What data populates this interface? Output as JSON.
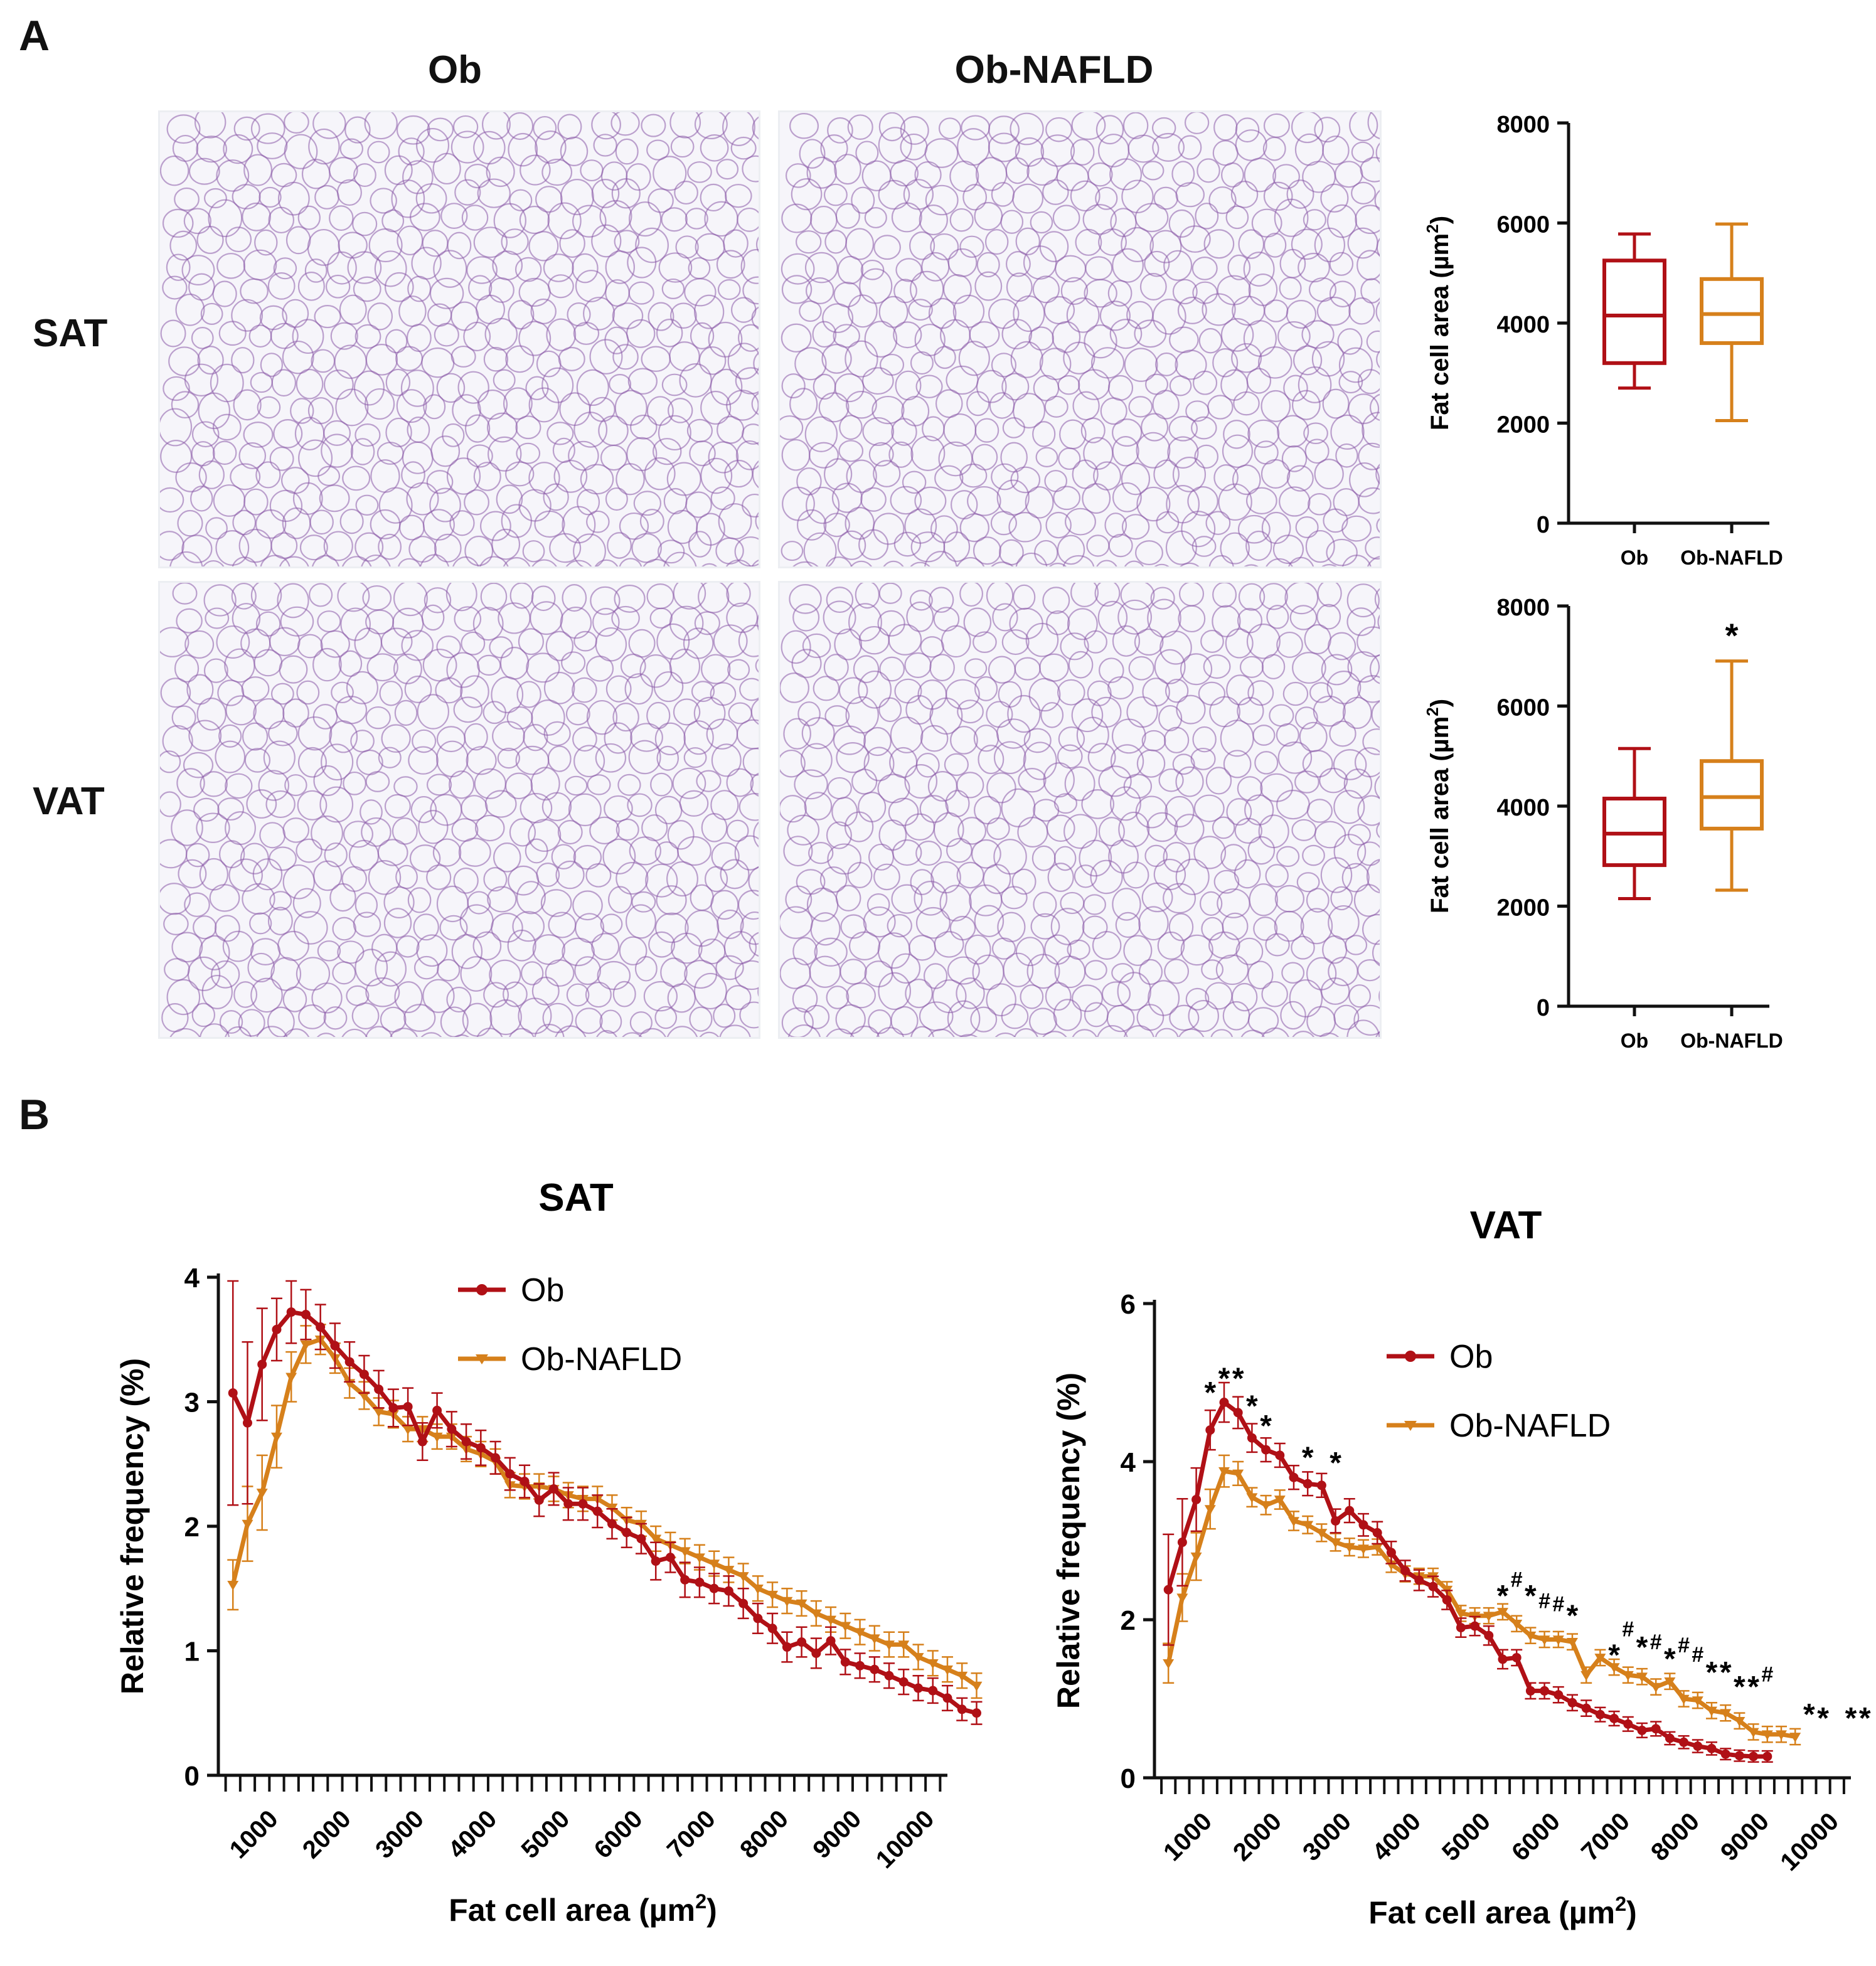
{
  "panel_a": {
    "letter": "A",
    "columns": [
      "Ob",
      "Ob-NAFLD"
    ],
    "rows": [
      "SAT",
      "VAT"
    ]
  },
  "panel_b": {
    "letter": "B"
  },
  "colors": {
    "ob": "#b01016",
    "ob_nafld": "#d6801b",
    "tissue_stain": "#8a5aa8"
  },
  "chart_data": [
    {
      "id": "sat_box",
      "type": "boxplot",
      "ylabel": "Fat cell area (µm²)",
      "ylabel_main": "Fat cell area (µm",
      "ylabel_sup": "2",
      "ylabel_tail": ")",
      "ylim": [
        0,
        8000
      ],
      "yticks": [
        0,
        2000,
        4000,
        6000,
        8000
      ],
      "categories": [
        "Ob",
        "Ob-NAFLD"
      ],
      "boxes": [
        {
          "name": "Ob",
          "min": 2700,
          "q1": 3200,
          "median": 4150,
          "q3": 5250,
          "max": 5780,
          "sig": ""
        },
        {
          "name": "Ob-NAFLD",
          "min": 2050,
          "q1": 3600,
          "median": 4180,
          "q3": 4880,
          "max": 5980,
          "sig": ""
        }
      ]
    },
    {
      "id": "vat_box",
      "type": "boxplot",
      "ylabel": "Fat cell area (µm²)",
      "ylabel_main": "Fat cell area (µm",
      "ylabel_sup": "2",
      "ylabel_tail": ")",
      "ylim": [
        0,
        8000
      ],
      "yticks": [
        0,
        2000,
        4000,
        6000,
        8000
      ],
      "categories": [
        "Ob",
        "Ob-NAFLD"
      ],
      "boxes": [
        {
          "name": "Ob",
          "min": 2150,
          "q1": 2820,
          "median": 3450,
          "q3": 4150,
          "max": 5150,
          "sig": ""
        },
        {
          "name": "Ob-NAFLD",
          "min": 2320,
          "q1": 3550,
          "median": 4180,
          "q3": 4900,
          "max": 6900,
          "sig": "*"
        }
      ]
    },
    {
      "id": "sat_line",
      "type": "line",
      "title": "SAT",
      "xlabel": "Fat cell area (µm²)",
      "xlabel_main": "Fat cell area (µm",
      "xlabel_sup": "2",
      "xlabel_tail": ")",
      "ylabel": "Relative frequency (%)",
      "xlim": [
        300,
        10300
      ],
      "ylim": [
        0,
        4
      ],
      "yticks": [
        0,
        1,
        2,
        3,
        4
      ],
      "xticks": [
        1000,
        2000,
        3000,
        4000,
        5000,
        6000,
        7000,
        8000,
        9000,
        10000
      ],
      "x_start": 500,
      "x_step": 200,
      "legend": {
        "position": "top-center",
        "entries": [
          "Ob",
          "Ob-NAFLD"
        ]
      },
      "series": [
        {
          "name": "Ob",
          "marker": "circle",
          "values": [
            3.07,
            2.83,
            3.3,
            3.58,
            3.72,
            3.7,
            3.6,
            3.45,
            3.32,
            3.22,
            3.1,
            2.95,
            2.96,
            2.68,
            2.93,
            2.78,
            2.68,
            2.63,
            2.55,
            2.42,
            2.36,
            2.21,
            2.3,
            2.18,
            2.18,
            2.12,
            2.02,
            1.95,
            1.9,
            1.72,
            1.75,
            1.57,
            1.55,
            1.5,
            1.48,
            1.38,
            1.26,
            1.18,
            1.03,
            1.07,
            0.98,
            1.08,
            0.91,
            0.88,
            0.85,
            0.8,
            0.75,
            0.7,
            0.68,
            0.62,
            0.53,
            0.5
          ],
          "errors": [
            0.9,
            0.65,
            0.45,
            0.25,
            0.25,
            0.2,
            0.18,
            0.18,
            0.16,
            0.15,
            0.15,
            0.15,
            0.15,
            0.15,
            0.14,
            0.14,
            0.14,
            0.14,
            0.13,
            0.13,
            0.13,
            0.13,
            0.13,
            0.13,
            0.13,
            0.13,
            0.12,
            0.12,
            0.12,
            0.15,
            0.12,
            0.14,
            0.12,
            0.12,
            0.12,
            0.12,
            0.12,
            0.12,
            0.12,
            0.12,
            0.12,
            0.11,
            0.1,
            0.1,
            0.1,
            0.1,
            0.1,
            0.1,
            0.1,
            0.1,
            0.09,
            0.09
          ]
        },
        {
          "name": "Ob-NAFLD",
          "marker": "triangle-down",
          "values": [
            1.53,
            2.02,
            2.27,
            2.72,
            3.2,
            3.46,
            3.5,
            3.35,
            3.15,
            3.05,
            2.92,
            2.9,
            2.78,
            2.78,
            2.72,
            2.72,
            2.62,
            2.58,
            2.52,
            2.33,
            2.32,
            2.32,
            2.3,
            2.25,
            2.22,
            2.22,
            2.15,
            2.05,
            2.02,
            1.9,
            1.85,
            1.8,
            1.75,
            1.7,
            1.65,
            1.6,
            1.5,
            1.45,
            1.4,
            1.38,
            1.3,
            1.25,
            1.2,
            1.15,
            1.1,
            1.05,
            1.05,
            0.95,
            0.9,
            0.85,
            0.8,
            0.72
          ],
          "errors": [
            0.2,
            0.3,
            0.3,
            0.25,
            0.2,
            0.15,
            0.12,
            0.12,
            0.12,
            0.11,
            0.11,
            0.11,
            0.1,
            0.1,
            0.1,
            0.1,
            0.1,
            0.1,
            0.1,
            0.1,
            0.1,
            0.1,
            0.1,
            0.1,
            0.1,
            0.1,
            0.1,
            0.1,
            0.1,
            0.1,
            0.1,
            0.1,
            0.1,
            0.1,
            0.1,
            0.1,
            0.1,
            0.1,
            0.1,
            0.1,
            0.1,
            0.1,
            0.1,
            0.1,
            0.1,
            0.1,
            0.1,
            0.1,
            0.1,
            0.1,
            0.1,
            0.1
          ]
        }
      ]
    },
    {
      "id": "vat_line",
      "type": "line",
      "title": "VAT",
      "xlabel": "Fat cell area (µm²)",
      "xlabel_main": "Fat cell area (µm",
      "xlabel_sup": "2",
      "xlabel_tail": ")",
      "ylabel": "Relative frequency (%)",
      "xlim": [
        300,
        10300
      ],
      "ylim": [
        0,
        6
      ],
      "yticks": [
        0,
        2,
        4,
        6
      ],
      "xticks": [
        1000,
        2000,
        3000,
        4000,
        5000,
        6000,
        7000,
        8000,
        9000,
        10000
      ],
      "x_start": 500,
      "x_step": 200,
      "legend": {
        "position": "top-right",
        "entries": [
          "Ob",
          "Ob-NAFLD"
        ]
      },
      "series": [
        {
          "name": "Ob",
          "marker": "circle",
          "values": [
            2.38,
            2.98,
            3.52,
            4.4,
            4.75,
            4.62,
            4.3,
            4.15,
            4.08,
            3.8,
            3.72,
            3.7,
            3.25,
            3.38,
            3.2,
            3.1,
            2.85,
            2.62,
            2.5,
            2.42,
            2.25,
            1.9,
            1.92,
            1.8,
            1.5,
            1.52,
            1.1,
            1.1,
            1.05,
            0.95,
            0.88,
            0.8,
            0.75,
            0.68,
            0.6,
            0.62,
            0.5,
            0.45,
            0.4,
            0.37,
            0.3,
            0.28,
            0.27,
            0.27
          ],
          "errors": [
            0.7,
            0.55,
            0.4,
            0.25,
            0.25,
            0.2,
            0.18,
            0.15,
            0.15,
            0.15,
            0.15,
            0.15,
            0.15,
            0.15,
            0.14,
            0.14,
            0.14,
            0.13,
            0.13,
            0.13,
            0.12,
            0.12,
            0.12,
            0.12,
            0.12,
            0.1,
            0.1,
            0.1,
            0.1,
            0.1,
            0.1,
            0.09,
            0.09,
            0.09,
            0.09,
            0.09,
            0.08,
            0.08,
            0.08,
            0.08,
            0.07,
            0.07,
            0.07,
            0.07
          ]
        },
        {
          "name": "Ob-NAFLD",
          "marker": "triangle-down",
          "values": [
            1.45,
            2.28,
            2.8,
            3.4,
            3.88,
            3.85,
            3.55,
            3.45,
            3.52,
            3.25,
            3.2,
            3.1,
            2.98,
            2.92,
            2.9,
            2.92,
            2.7,
            2.58,
            2.55,
            2.55,
            2.38,
            2.08,
            2.05,
            2.05,
            2.1,
            1.95,
            1.8,
            1.75,
            1.75,
            1.72,
            1.3,
            1.52,
            1.4,
            1.3,
            1.28,
            1.15,
            1.22,
            1.0,
            0.98,
            0.85,
            0.82,
            0.72,
            0.58,
            0.55,
            0.55,
            0.52
          ],
          "errors": [
            0.25,
            0.3,
            0.3,
            0.25,
            0.2,
            0.15,
            0.12,
            0.12,
            0.12,
            0.12,
            0.11,
            0.11,
            0.11,
            0.11,
            0.11,
            0.1,
            0.1,
            0.1,
            0.1,
            0.1,
            0.1,
            0.1,
            0.1,
            0.1,
            0.1,
            0.1,
            0.1,
            0.1,
            0.1,
            0.1,
            0.1,
            0.1,
            0.1,
            0.1,
            0.1,
            0.1,
            0.1,
            0.1,
            0.1,
            0.1,
            0.1,
            0.1,
            0.1,
            0.1,
            0.1,
            0.1
          ]
        }
      ],
      "annotations": [
        {
          "x": 1100,
          "y": 4.92,
          "text": "*"
        },
        {
          "x": 1300,
          "y": 5.1,
          "text": "*"
        },
        {
          "x": 1500,
          "y": 5.1,
          "text": "*"
        },
        {
          "x": 1700,
          "y": 4.75,
          "text": "*"
        },
        {
          "x": 1900,
          "y": 4.5,
          "text": "*"
        },
        {
          "x": 2500,
          "y": 4.1,
          "text": "*"
        },
        {
          "x": 2900,
          "y": 4.03,
          "text": "*"
        },
        {
          "x": 5300,
          "y": 2.35,
          "text": "*"
        },
        {
          "x": 5500,
          "y": 2.45,
          "text": "#"
        },
        {
          "x": 5700,
          "y": 2.35,
          "text": "*"
        },
        {
          "x": 5900,
          "y": 2.18,
          "text": "#"
        },
        {
          "x": 6100,
          "y": 2.14,
          "text": "#"
        },
        {
          "x": 6300,
          "y": 2.1,
          "text": "*"
        },
        {
          "x": 6900,
          "y": 1.6,
          "text": "*"
        },
        {
          "x": 7100,
          "y": 1.82,
          "text": "#"
        },
        {
          "x": 7300,
          "y": 1.7,
          "text": "*"
        },
        {
          "x": 7500,
          "y": 1.66,
          "text": "#"
        },
        {
          "x": 7700,
          "y": 1.55,
          "text": "*"
        },
        {
          "x": 7900,
          "y": 1.62,
          "text": "#"
        },
        {
          "x": 8100,
          "y": 1.5,
          "text": "#"
        },
        {
          "x": 8300,
          "y": 1.38,
          "text": "*"
        },
        {
          "x": 8500,
          "y": 1.38,
          "text": "*"
        },
        {
          "x": 8700,
          "y": 1.2,
          "text": "*"
        },
        {
          "x": 8900,
          "y": 1.2,
          "text": "*"
        },
        {
          "x": 9100,
          "y": 1.25,
          "text": "#"
        },
        {
          "x": 9700,
          "y": 0.85,
          "text": "*"
        },
        {
          "x": 9900,
          "y": 0.8,
          "text": "*"
        },
        {
          "x": 10300,
          "y": 0.8,
          "text": "*"
        },
        {
          "x": 10500,
          "y": 0.8,
          "text": "*"
        }
      ]
    }
  ]
}
